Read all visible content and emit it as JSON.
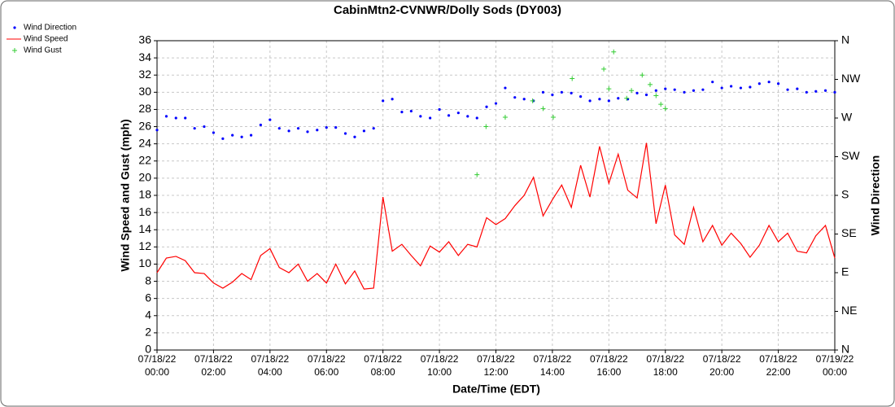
{
  "chart_data": {
    "type": "line",
    "title": "CabinMtn2-CVNWR/Dolly Sods (DY003)",
    "xlabel": "Date/Time (EDT)",
    "ylabel": "Wind Speed and Gust (mph)",
    "y2label": "Wind Direction",
    "x": [
      0,
      0.33,
      0.67,
      1,
      1.33,
      1.67,
      2,
      2.33,
      2.67,
      3,
      3.33,
      3.67,
      4,
      4.33,
      4.67,
      5,
      5.33,
      5.67,
      6,
      6.33,
      6.67,
      7,
      7.33,
      7.67,
      8,
      8.33,
      8.67,
      9,
      9.33,
      9.67,
      10,
      10.33,
      10.67,
      11,
      11.33,
      11.67,
      12,
      12.33,
      12.67,
      13,
      13.33,
      13.67,
      14,
      14.33,
      14.67,
      15,
      15.33,
      15.67,
      16,
      16.33,
      16.67,
      17,
      17.33,
      17.67,
      18,
      18.33,
      18.67,
      19,
      19.33,
      19.67,
      20,
      20.33,
      20.67,
      21,
      21.33,
      21.67,
      22,
      22.33,
      22.67,
      23,
      23.33,
      23.67,
      24
    ],
    "series": [
      {
        "name": "Wind Direction",
        "color": "#0000ff",
        "marker": "dot",
        "axis": "y2",
        "values": [
          256,
          272,
          270,
          270,
          258,
          260,
          253,
          246,
          250,
          248,
          250,
          262,
          268,
          258,
          255,
          258,
          254,
          256,
          259,
          259,
          252,
          248,
          255,
          258,
          290,
          292,
          277,
          278,
          272,
          270,
          280,
          273,
          276,
          272,
          270,
          283,
          287,
          305,
          294,
          292,
          290,
          300,
          297,
          300,
          299,
          295,
          290,
          292,
          290,
          293,
          292,
          299,
          297,
          302,
          304,
          303,
          300,
          302,
          303,
          312,
          305,
          307,
          305,
          306,
          310,
          312,
          310,
          303,
          304,
          300,
          301,
          302,
          300
        ]
      },
      {
        "name": "Wind Speed",
        "color": "#ff0000",
        "marker": "line",
        "values": [
          9.0,
          10.7,
          10.9,
          10.4,
          9.0,
          8.9,
          7.8,
          7.2,
          7.9,
          8.9,
          8.2,
          11.0,
          11.8,
          9.6,
          9.0,
          10.0,
          8.0,
          8.9,
          7.8,
          10.0,
          7.7,
          9.2,
          7.1,
          7.2,
          17.8,
          11.5,
          12.3,
          11.0,
          9.8,
          12.1,
          11.4,
          12.6,
          11.0,
          12.3,
          12.0,
          15.4,
          14.6,
          15.3,
          16.8,
          18.0,
          20.1,
          15.6,
          17.5,
          19.2,
          16.6,
          21.5,
          17.8,
          23.7,
          19.4,
          22.8,
          18.6,
          17.7,
          24.1,
          14.7,
          19.2,
          13.4,
          12.3,
          16.6,
          12.6,
          14.5,
          12.2,
          13.6,
          12.4,
          10.8,
          12.2,
          14.5,
          12.6,
          13.6,
          11.5,
          11.3,
          13.3,
          14.5,
          10.7
        ]
      },
      {
        "name": "Wind Gust",
        "color": "#33cc33",
        "marker": "plus",
        "x": [
          11.33,
          11.65,
          12.33,
          13.3,
          13.67,
          14.03,
          14.7,
          15.82,
          16.0,
          16.17,
          16.63,
          16.8,
          17.18,
          17.46,
          17.67,
          17.84,
          18.0
        ],
        "values": [
          20.4,
          26,
          27.1,
          29,
          28.1,
          27.1,
          31.6,
          32.7,
          30.4,
          34.7,
          29.3,
          30.2,
          32,
          30.9,
          29.6,
          28.6,
          28.1
        ]
      }
    ],
    "xlim": [
      0,
      24
    ],
    "xticks": [
      {
        "value": 0,
        "label": "07/18/22\n00:00"
      },
      {
        "value": 2,
        "label": "07/18/22\n02:00"
      },
      {
        "value": 4,
        "label": "07/18/22\n04:00"
      },
      {
        "value": 6,
        "label": "07/18/22\n06:00"
      },
      {
        "value": 8,
        "label": "07/18/22\n08:00"
      },
      {
        "value": 10,
        "label": "07/18/22\n10:00"
      },
      {
        "value": 12,
        "label": "07/18/22\n12:00"
      },
      {
        "value": 14,
        "label": "07/18/22\n14:00"
      },
      {
        "value": 16,
        "label": "07/18/22\n16:00"
      },
      {
        "value": 18,
        "label": "07/18/22\n18:00"
      },
      {
        "value": 20,
        "label": "07/18/22\n20:00"
      },
      {
        "value": 22,
        "label": "07/18/22\n22:00"
      },
      {
        "value": 24,
        "label": "07/19/22\n00:00"
      }
    ],
    "ylim": [
      0,
      36
    ],
    "yticks": [
      0,
      2,
      4,
      6,
      8,
      10,
      12,
      14,
      16,
      18,
      20,
      22,
      24,
      26,
      28,
      30,
      32,
      34,
      36
    ],
    "y2lim": [
      0,
      360
    ],
    "y2ticks": [
      {
        "value": 0,
        "label": "N"
      },
      {
        "value": 45,
        "label": "NE"
      },
      {
        "value": 90,
        "label": "E"
      },
      {
        "value": 135,
        "label": "SE"
      },
      {
        "value": 180,
        "label": "S"
      },
      {
        "value": 225,
        "label": "SW"
      },
      {
        "value": 270,
        "label": "W"
      },
      {
        "value": 315,
        "label": "NW"
      },
      {
        "value": 360,
        "label": "N"
      }
    ],
    "grid": true
  }
}
